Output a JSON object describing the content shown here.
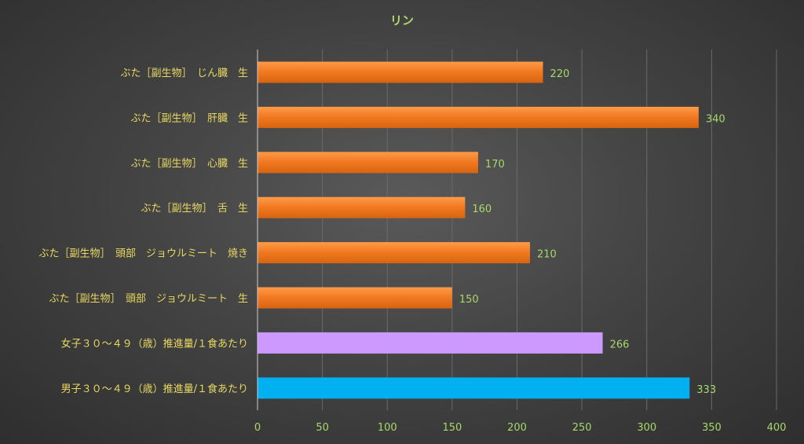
{
  "colors": {
    "title": "#b8d66e",
    "category_text": "#e8d860",
    "tick_text": "#a8d86a",
    "data_label_text": "#a8d86a",
    "gridline": "#6a6a6a",
    "axis_line": "#cfcfcf",
    "bar_orange": "#f07820",
    "bar_purple": "#cc99ff",
    "bar_blue": "#00b0f0"
  },
  "chart_data": {
    "type": "bar",
    "orientation": "horizontal",
    "title": "リン",
    "xlabel": "",
    "ylabel": "",
    "xlim": [
      0,
      400
    ],
    "xticks": [
      "0",
      "50",
      "100",
      "150",
      "200",
      "250",
      "300",
      "350",
      "400"
    ],
    "grid": true,
    "legend": "none",
    "categories": [
      "ぶた［副生物］　じん臓　生",
      "ぶた［副生物］　肝臓　生",
      "ぶた［副生物］　心臓　生",
      "ぶた［副生物］　舌　生",
      "ぶた［副生物］　頭部　ジョウルミート　焼き",
      "ぶた［副生物］　頭部　ジョウルミート　生",
      "女子３０～４９（歳）推進量/１食あたり",
      "男子３０～４９（歳）推進量/１食あたり"
    ],
    "values": [
      220,
      340,
      170,
      160,
      210,
      150,
      266,
      333
    ],
    "data_labels": [
      "220",
      "340",
      "170",
      "160",
      "210",
      "150",
      "266",
      "333"
    ],
    "bar_colors": [
      "orange",
      "orange",
      "orange",
      "orange",
      "orange",
      "orange",
      "purple",
      "blue"
    ]
  }
}
